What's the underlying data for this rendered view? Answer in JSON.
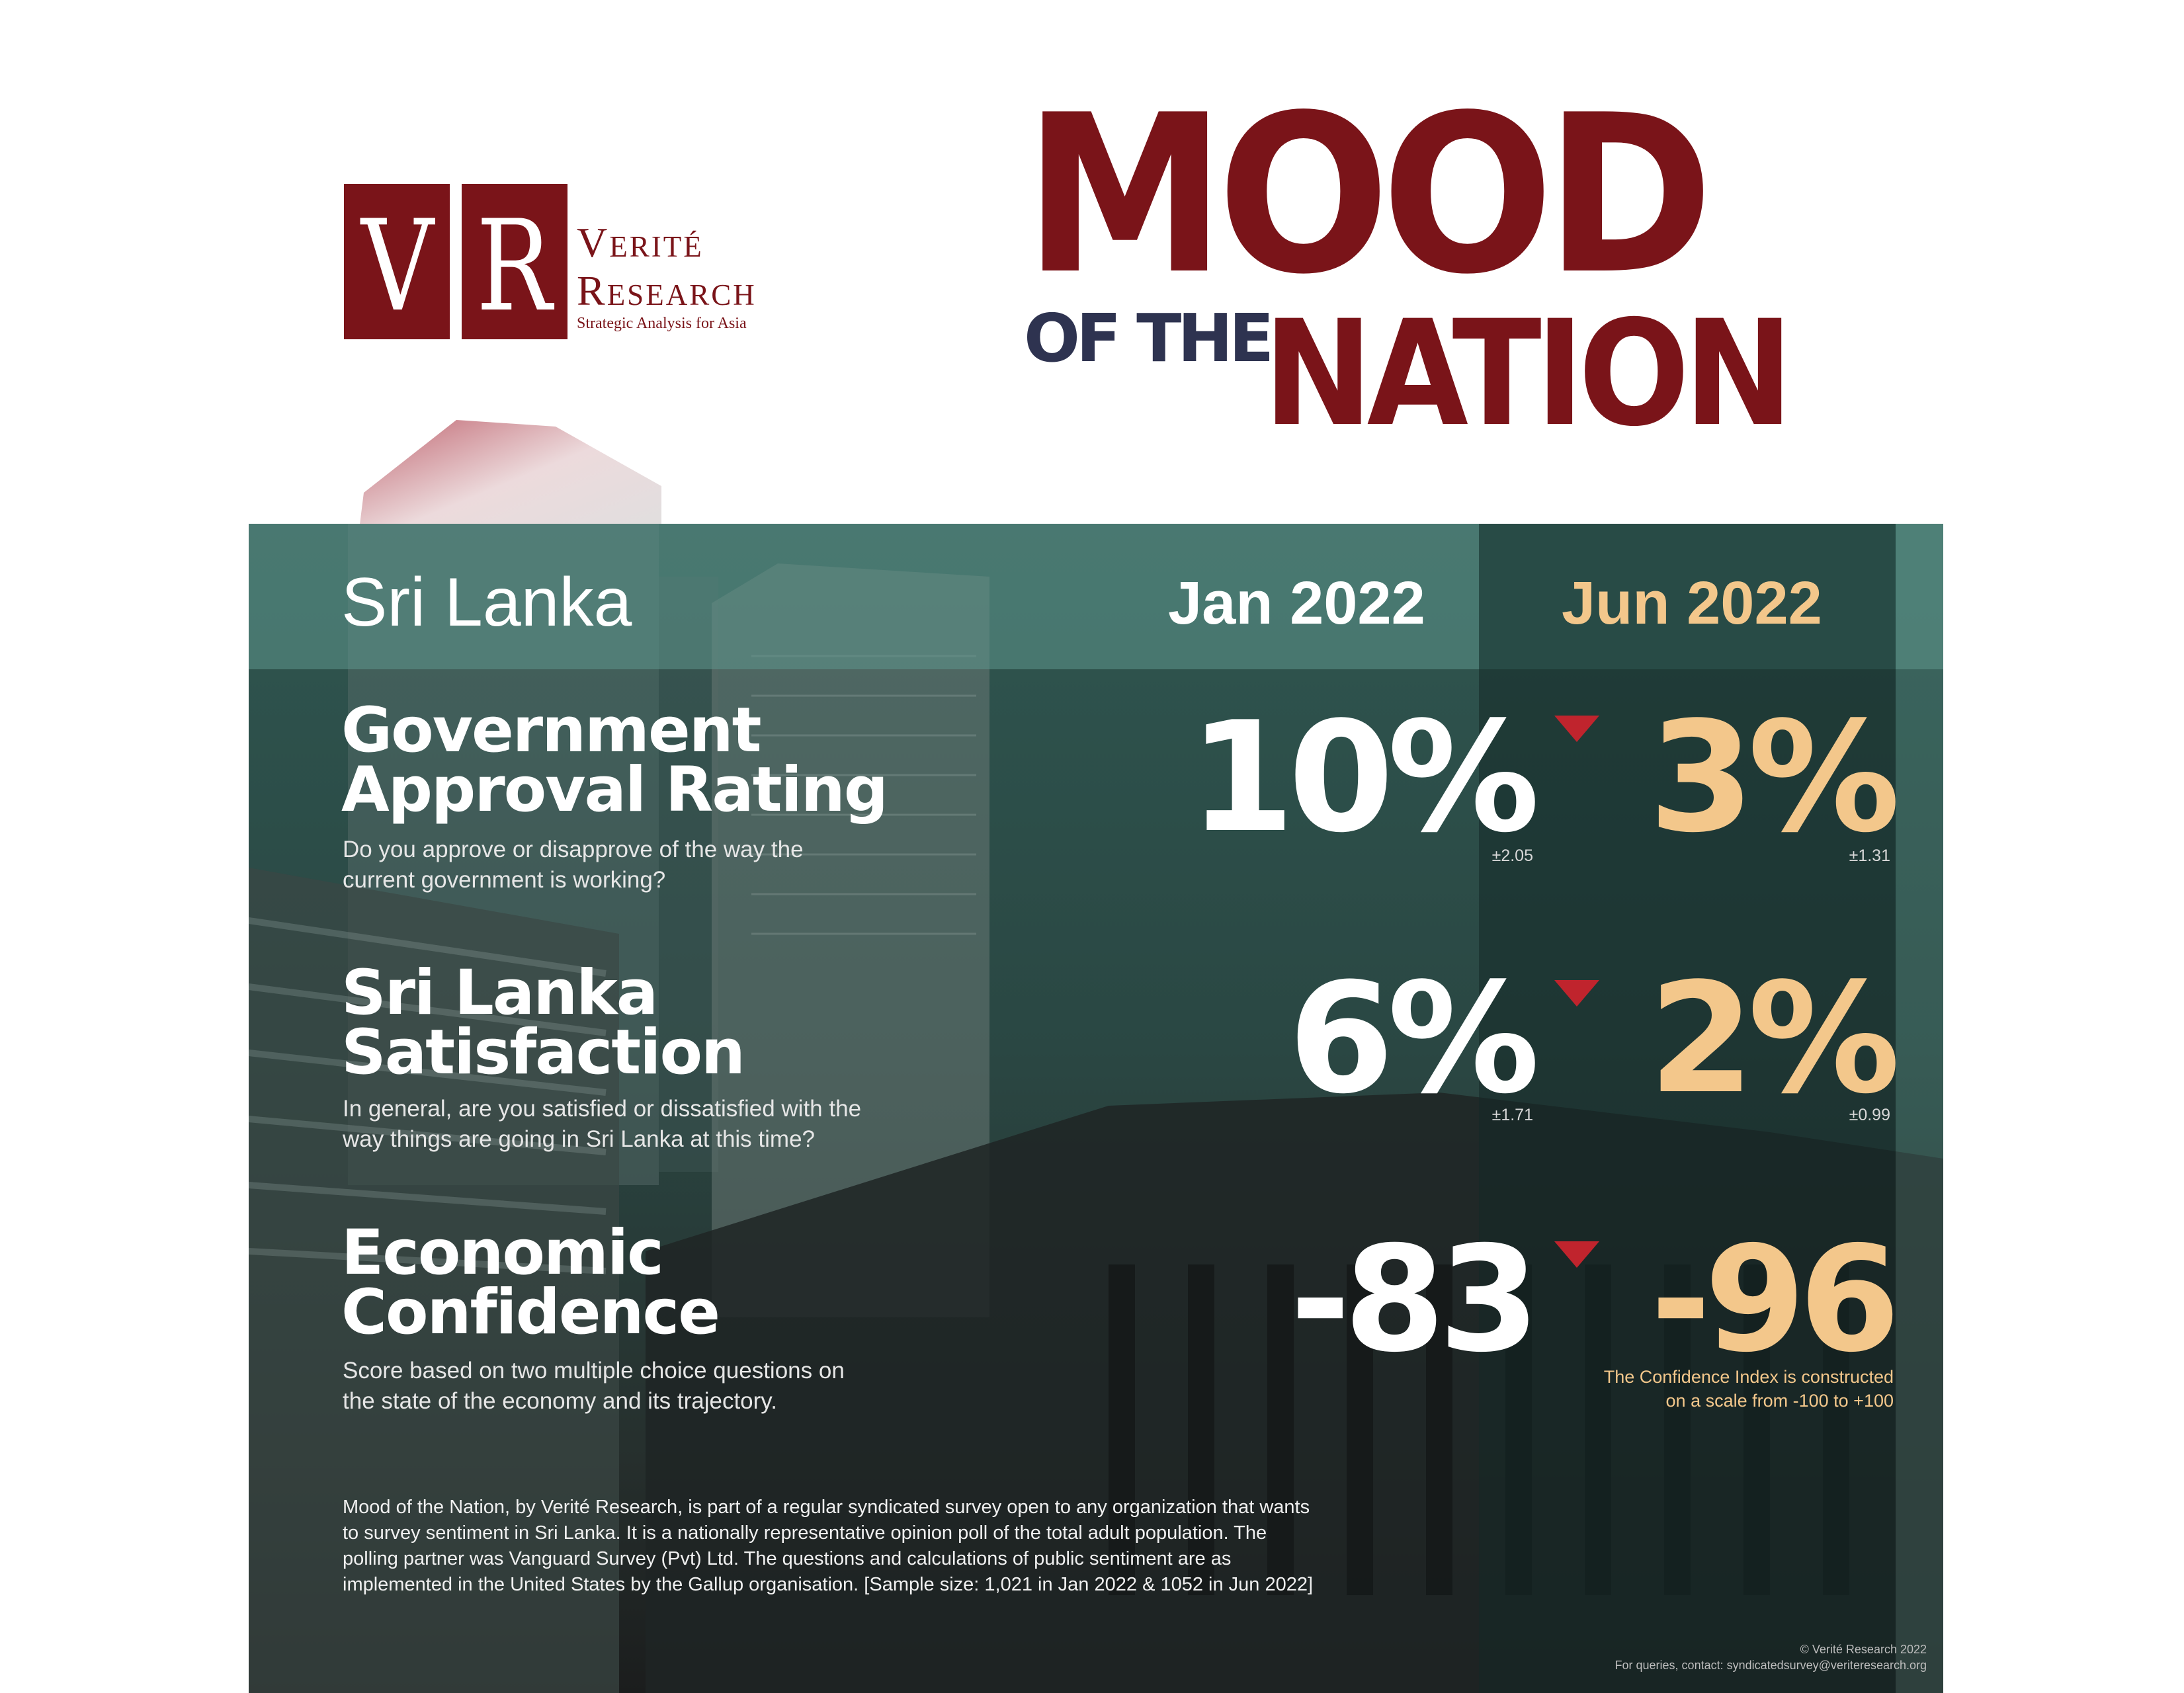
{
  "logo": {
    "monogram_v": "V",
    "monogram_r": "R",
    "word1": "Verité",
    "word2": "Research",
    "tagline": "Strategic Analysis for Asia"
  },
  "title": {
    "line1": "MOOD",
    "prefix": "OF THE",
    "line2": "NATION"
  },
  "panel": {
    "country": "Sri Lanka",
    "col_jan": "Jan 2022",
    "col_jun": "Jun 2022",
    "metrics": [
      {
        "title_line1": "Government",
        "title_line2": "Approval Rating",
        "question": "Do you approve or disapprove of the way the\ncurrent government is working?",
        "jan_value": "10%",
        "jan_moe": "±2.05",
        "jun_value": "3%",
        "jun_moe": "±1.31",
        "trend": "down"
      },
      {
        "title_line1": "Sri Lanka",
        "title_line2": "Satisfaction",
        "question": "In general, are you satisfied or dissatisfied with the\nway things are going in Sri Lanka at this time?",
        "jan_value": "6%",
        "jan_moe": "±1.71",
        "jun_value": "2%",
        "jun_moe": "±0.99",
        "trend": "down"
      },
      {
        "title_line1": "Economic",
        "title_line2": "Confidence",
        "question": "Score based on two multiple choice questions on\nthe state of the economy and its trajectory.",
        "jan_value": "-83",
        "jun_value": "-96",
        "trend": "down"
      }
    ],
    "index_note": "The Confidence Index is constructed\non a scale from -100 to +100",
    "footnote": "Mood of the Nation, by Verité Research, is part of a regular syndicated survey open to any organization that wants\nto survey sentiment in Sri Lanka. It is a nationally representative opinion poll of the total adult population. The\npolling partner was Vanguard Survey (Pvt) Ltd. The questions and calculations of public sentiment are as\nimplemented in the United States by the Gallup organisation. [Sample size: 1,021 in Jan 2022 & 1052 in Jun 2022]",
    "copyright": "© Verité Research 2022\nFor queries, contact: syndicatedsurvey@veriteresearch.org"
  },
  "colors": {
    "brand": "#7a1419",
    "navy": "#2e3350",
    "teal": "#2f5650",
    "accent": "#f3c78b",
    "down_arrow": "#c0242d"
  },
  "icons": [
    "down-arrow-icon"
  ]
}
